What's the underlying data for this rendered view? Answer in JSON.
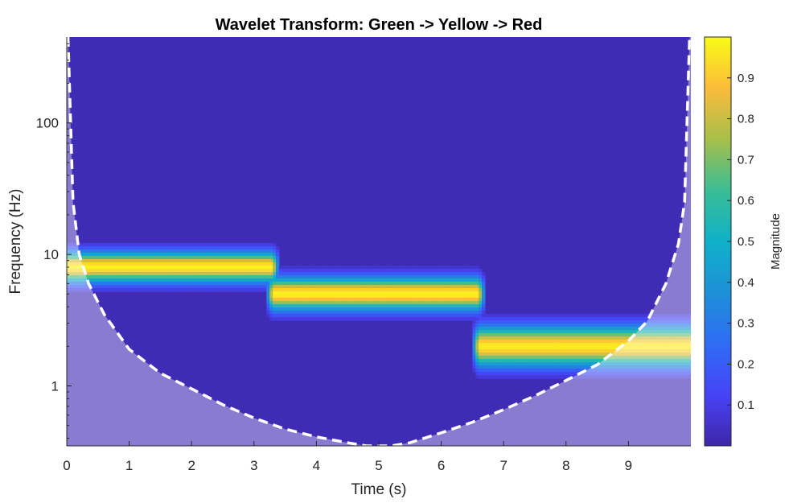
{
  "chart_data": {
    "type": "heatmap",
    "title": "Wavelet Transform: Green -> Yellow -> Red",
    "xlabel": "Time (s)",
    "ylabel": "Frequency (Hz)",
    "colorbar_label": "Magnitude",
    "colormap": "parula",
    "xlim": [
      0,
      10
    ],
    "ylim": [
      0.35,
      450
    ],
    "yscale": "log",
    "x_ticks": [
      0,
      1,
      2,
      3,
      4,
      5,
      6,
      7,
      8,
      9
    ],
    "x_tick_labels": [
      "0",
      "1",
      "2",
      "3",
      "4",
      "5",
      "6",
      "7",
      "8",
      "9"
    ],
    "y_ticks": [
      1,
      10,
      100
    ],
    "y_tick_labels": [
      "1",
      "10",
      "100"
    ],
    "clim": [
      0,
      1
    ],
    "colorbar_ticks": [
      0.1,
      0.2,
      0.3,
      0.4,
      0.5,
      0.6,
      0.7,
      0.8,
      0.9
    ],
    "colorbar_tick_labels": [
      "0.1",
      "0.2",
      "0.3",
      "0.4",
      "0.5",
      "0.6",
      "0.7",
      "0.8",
      "0.9"
    ],
    "background_magnitude": 0.02,
    "components": [
      {
        "t_start": 0,
        "t_end": 3.3,
        "frequency_hz": 8,
        "magnitude": 0.98
      },
      {
        "t_start": 3.3,
        "t_end": 6.6,
        "frequency_hz": 5,
        "magnitude": 0.98
      },
      {
        "t_start": 6.6,
        "t_end": 10,
        "frequency_hz": 2,
        "magnitude": 0.97
      }
    ],
    "cone_of_influence": {
      "style": "white dashed line, shaded outside",
      "t": [
        0.02,
        0.1,
        0.2,
        0.35,
        0.6,
        1.0,
        1.5,
        2.0,
        2.5,
        3.0,
        3.5,
        4.0,
        4.5,
        4.8,
        5.0,
        5.2,
        5.5,
        6.0,
        6.5,
        7.0,
        7.5,
        8.0,
        8.5,
        9.0,
        9.3,
        9.6,
        9.8,
        9.9,
        9.98
      ],
      "frequency_hz": [
        450,
        25,
        10,
        6,
        3.5,
        1.9,
        1.25,
        0.95,
        0.72,
        0.57,
        0.47,
        0.41,
        0.37,
        0.35,
        0.35,
        0.35,
        0.37,
        0.44,
        0.53,
        0.66,
        0.84,
        1.1,
        1.45,
        2.2,
        3.1,
        6,
        12,
        25,
        450
      ]
    }
  }
}
